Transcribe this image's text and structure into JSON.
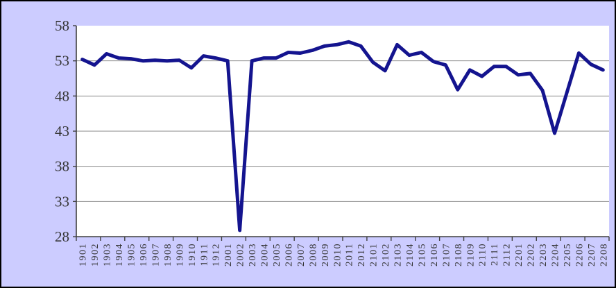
{
  "chart": {
    "background_color": "#ccccff",
    "plot_background_color": "#ffffff",
    "line_color": "#14148f",
    "gridline_color": "#8a8a8a",
    "axis_color": "#3f3f3f",
    "label_color": "#333333"
  },
  "chart_data": {
    "type": "line",
    "title": "",
    "xlabel": "",
    "ylabel": "",
    "legend": "none",
    "grid": "horizontal",
    "ylim": [
      28,
      58
    ],
    "yticks": [
      58,
      53,
      48,
      43,
      38,
      33,
      28
    ],
    "x_tick_interval": 2,
    "categories": [
      "1901",
      "1902",
      "1903",
      "1904",
      "1905",
      "1906",
      "1907",
      "1908",
      "1909",
      "1910",
      "1911",
      "1912",
      "2001",
      "2002",
      "2003",
      "2004",
      "2005",
      "2006",
      "2007",
      "2008",
      "2009",
      "2010",
      "2011",
      "2012",
      "2101",
      "2102",
      "2103",
      "2104",
      "2105",
      "2106",
      "2107",
      "2108",
      "2109",
      "2110",
      "2111",
      "2112",
      "2201",
      "2202",
      "2203",
      "2204",
      "2205",
      "2206",
      "2207",
      "2208"
    ],
    "values": [
      53.2,
      52.4,
      54.0,
      53.4,
      53.3,
      53.0,
      53.1,
      53.0,
      53.1,
      52.0,
      53.7,
      53.4,
      53.0,
      28.9,
      53.0,
      53.4,
      53.4,
      54.2,
      54.1,
      54.5,
      55.1,
      55.3,
      55.7,
      55.1,
      52.8,
      51.6,
      55.3,
      53.8,
      54.2,
      52.9,
      52.4,
      48.9,
      51.7,
      50.8,
      52.2,
      52.2,
      51.0,
      51.2,
      48.8,
      42.7,
      48.4,
      54.1,
      52.5,
      51.7
    ]
  }
}
